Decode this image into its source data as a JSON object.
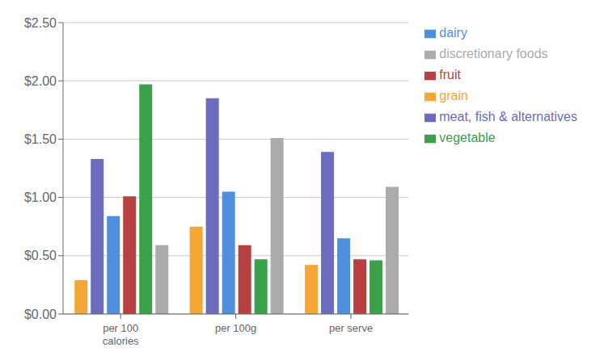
{
  "chart_data": {
    "type": "bar",
    "categories": [
      "per 100\ncalories",
      "per 100g",
      "per serve"
    ],
    "series": [
      {
        "name": "grain",
        "color": "#F4A637",
        "values": [
          0.29,
          0.75,
          0.42
        ]
      },
      {
        "name": "meat, fish & alternatives",
        "color": "#6B6BBF",
        "values": [
          1.33,
          1.85,
          1.39
        ]
      },
      {
        "name": "dairy",
        "color": "#4F8FE0",
        "values": [
          0.84,
          1.05,
          0.65
        ]
      },
      {
        "name": "fruit",
        "color": "#B94040",
        "values": [
          1.01,
          0.59,
          0.47
        ]
      },
      {
        "name": "vegetable",
        "color": "#3AA04A",
        "values": [
          1.97,
          0.47,
          0.46
        ]
      },
      {
        "name": "discretionary foods",
        "color": "#ABABAB",
        "values": [
          0.59,
          1.51,
          1.09
        ]
      }
    ],
    "ylim": [
      0,
      2.5
    ],
    "yticks": [
      {
        "value": 0,
        "label": "$0.00"
      },
      {
        "value": 0.5,
        "label": "$0.50"
      },
      {
        "value": 1,
        "label": "$1.00"
      },
      {
        "value": 1.5,
        "label": "$1.50"
      },
      {
        "value": 2,
        "label": "$2.00"
      },
      {
        "value": 2.5,
        "label": "$2.50"
      }
    ],
    "grid": true,
    "legend": "right"
  }
}
